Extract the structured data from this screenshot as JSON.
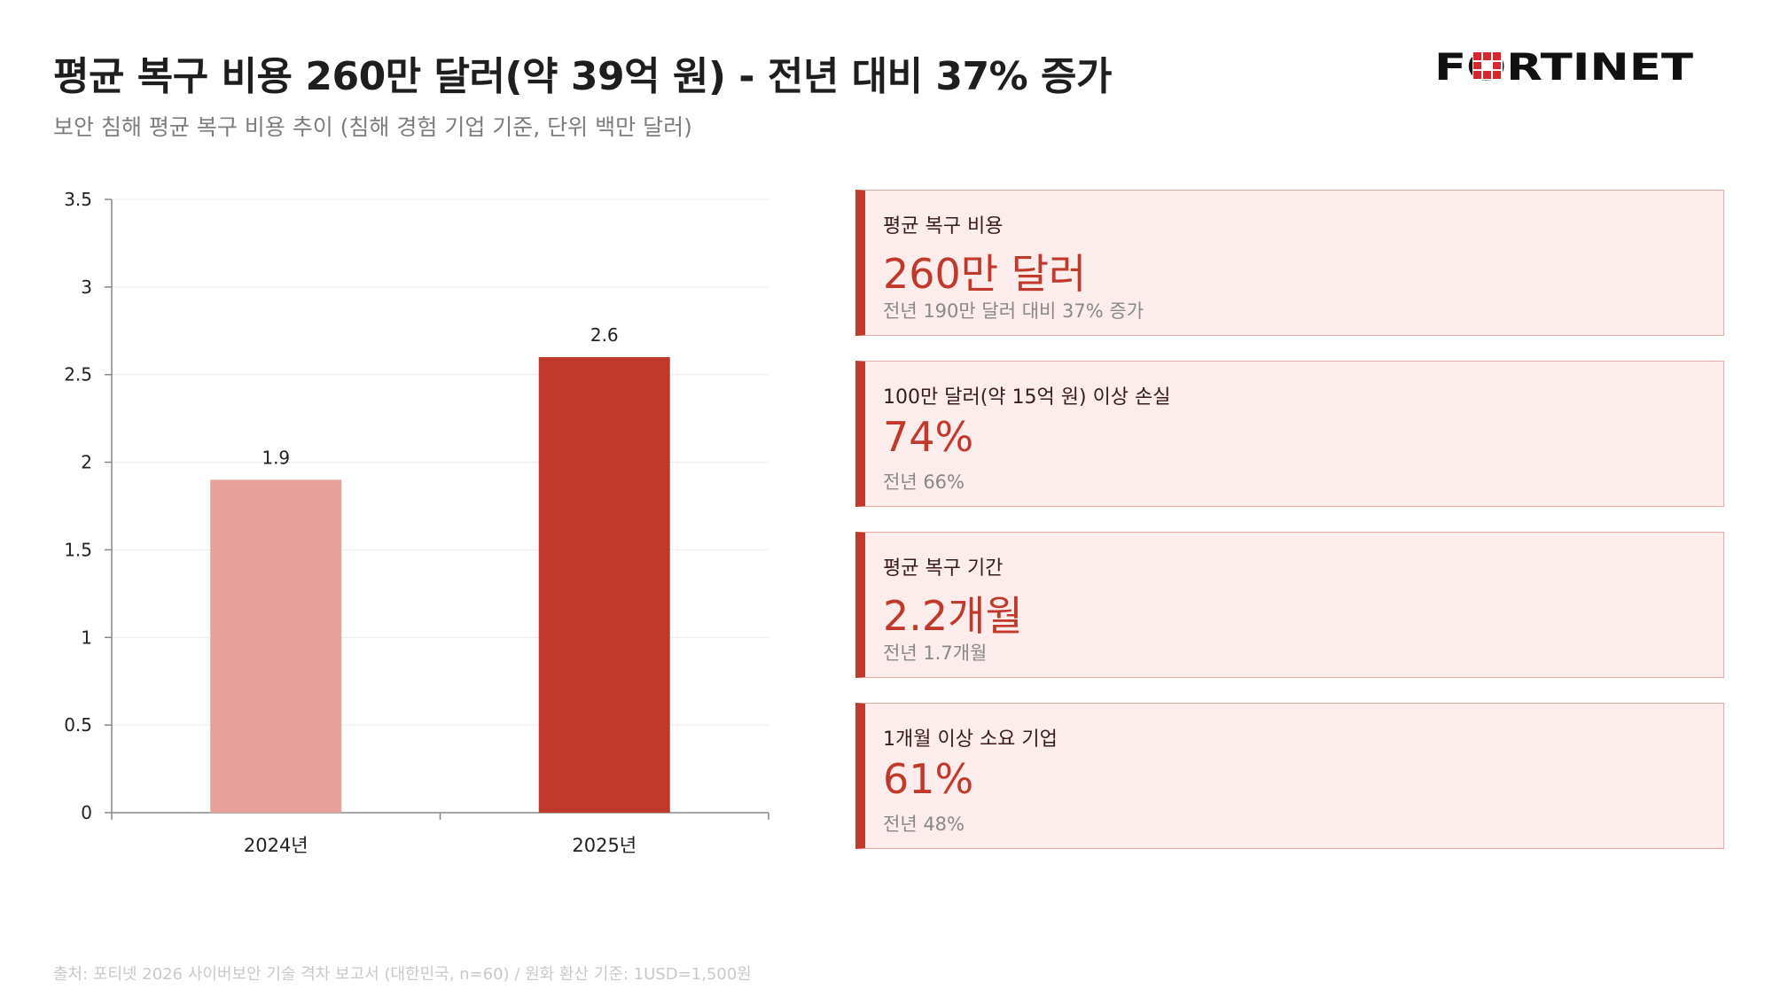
{
  "header": {
    "title": "평균 복구 비용 260만 달러(약 39억 원) - 전년 대비 37% 증가",
    "subtitle": "보안 침해 평균 복구 비용 추이 (침해 경험 기업 기준, 단위 백만 달러)",
    "logo_text": "FORTINET"
  },
  "colors": {
    "accent": "#c0392b",
    "bar_2024": "#e8a09a",
    "bar_2025": "#c0392b",
    "card_bg": "#fceceb",
    "card_border": "#eaa9a3"
  },
  "chart_data": {
    "type": "bar",
    "categories": [
      "2024년",
      "2025년"
    ],
    "values": [
      1.9,
      2.6
    ],
    "data_labels": [
      "1.9",
      "2.6"
    ],
    "y_ticks": [
      "0",
      "0.5",
      "1",
      "1.5",
      "2",
      "2.5",
      "3",
      "3.5"
    ],
    "ylim": [
      0,
      3.5
    ],
    "grid": true,
    "legend": "none"
  },
  "stat_cards": [
    {
      "label": "평균 복구 비용",
      "value": "260만 달러",
      "note": "전년 190만 달러 대비 37% 증가"
    },
    {
      "label": "100만 달러(약 15억 원) 이상 손실",
      "value": "74%",
      "note": "전년 66%"
    },
    {
      "label": "평균 복구 기간",
      "value": "2.2개월",
      "note": "전년 1.7개월"
    },
    {
      "label": "1개월 이상 소요 기업",
      "value": "61%",
      "note": "전년 48%"
    }
  ],
  "footer": {
    "source": "출처: 포티넷 2026 사이버보안 기술 격차 보고서 (대한민국, n=60) / 원화 환산 기준: 1USD=1,500원"
  }
}
